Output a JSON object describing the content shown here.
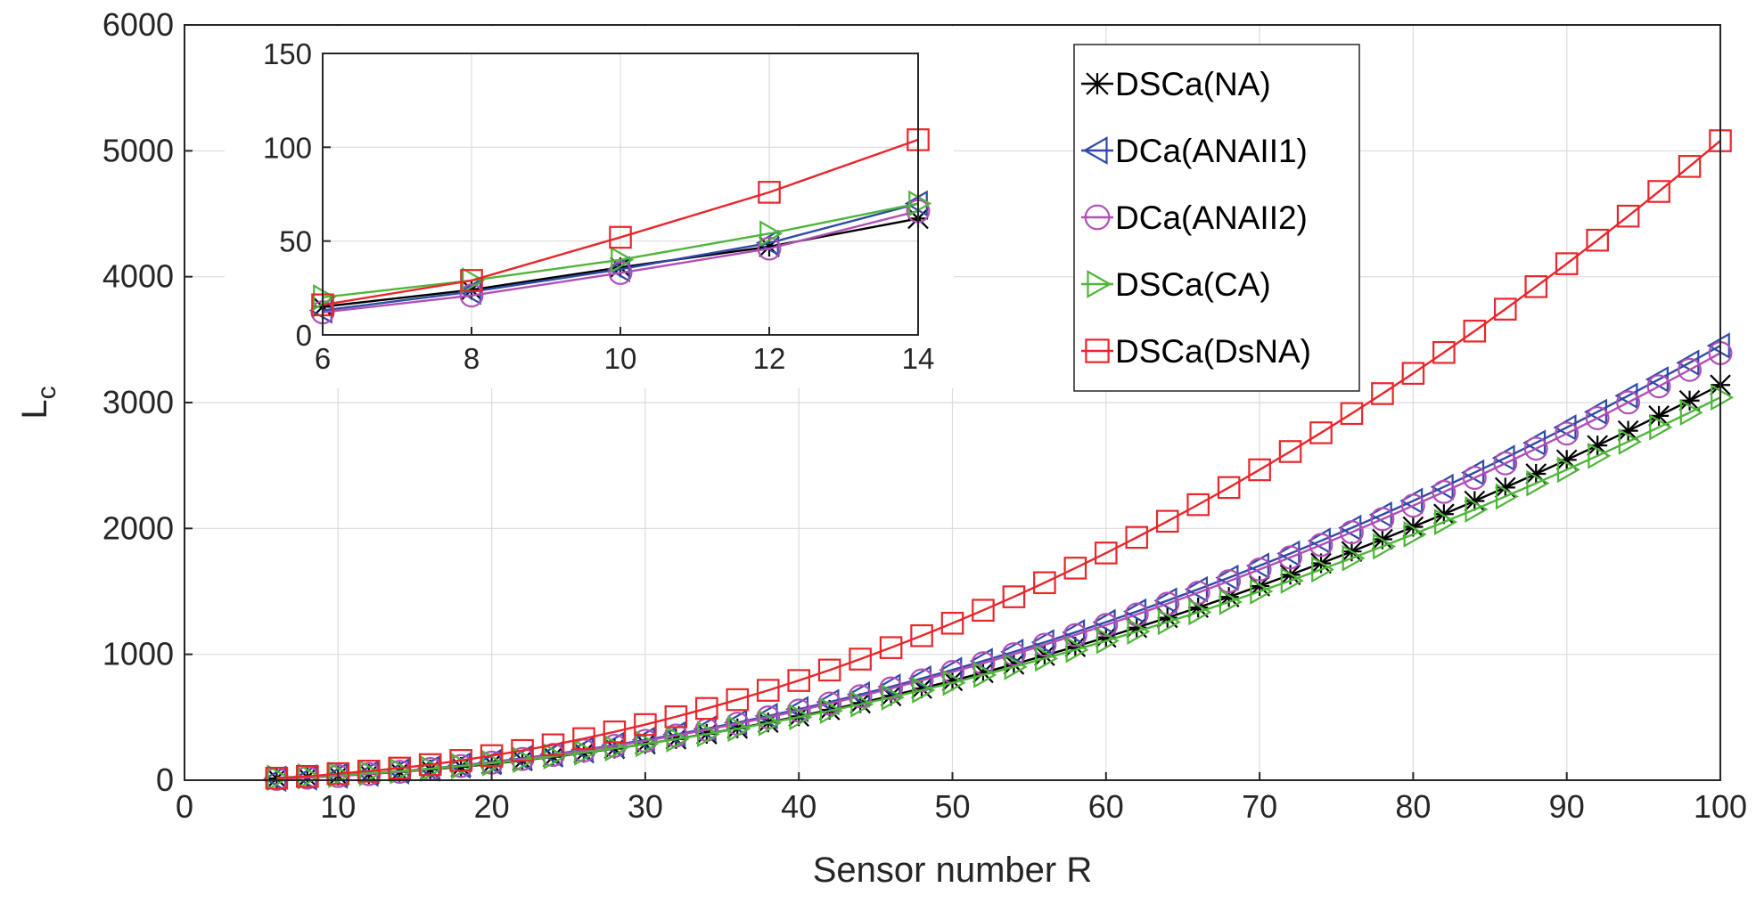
{
  "chart_data": [
    {
      "type": "line",
      "role": "main",
      "xlabel": "Sensor number R",
      "ylabel": "L",
      "ylabel_subscript": "c",
      "xlim": [
        0,
        100
      ],
      "ylim": [
        0,
        6000
      ],
      "xticks": [
        0,
        10,
        20,
        30,
        40,
        50,
        60,
        70,
        80,
        90,
        100
      ],
      "yticks": [
        0,
        1000,
        2000,
        3000,
        4000,
        5000,
        6000
      ],
      "grid": true,
      "legend": "top-right",
      "x": [
        6,
        8,
        10,
        12,
        14,
        16,
        18,
        20,
        22,
        24,
        26,
        28,
        30,
        32,
        34,
        36,
        38,
        40,
        42,
        44,
        46,
        48,
        50,
        52,
        54,
        56,
        58,
        60,
        62,
        64,
        66,
        68,
        70,
        72,
        74,
        76,
        78,
        80,
        82,
        84,
        86,
        88,
        90,
        92,
        94,
        96,
        98,
        100
      ],
      "series": [
        {
          "name": "DSCa(NA)",
          "color": "#000000",
          "marker": "star",
          "values": [
            14,
            23,
            35,
            49,
            66,
            85,
            106,
            130,
            157,
            186,
            217,
            251,
            288,
            327,
            368,
            412,
            459,
            508,
            559,
            613,
            670,
            729,
            790,
            854,
            921,
            990,
            1061,
            1135,
            1212,
            1291,
            1372,
            1456,
            1543,
            1632,
            1723,
            1817,
            1914,
            2013,
            2114,
            2218,
            2325,
            2434,
            2545,
            2659,
            2776,
            2895,
            3016,
            3140
          ]
        },
        {
          "name": "DCa(ANAII1)",
          "color": "#2f4ba6",
          "marker": "triangle-left",
          "values": [
            12,
            22,
            36,
            52,
            71,
            92,
            117,
            144,
            174,
            206,
            241,
            279,
            320,
            363,
            409,
            458,
            510,
            564,
            621,
            681,
            743,
            808,
            876,
            947,
            1020,
            1096,
            1175,
            1256,
            1340,
            1427,
            1517,
            1609,
            1704,
            1801,
            1902,
            2005,
            2110,
            2219,
            2330,
            2444,
            2560,
            2680,
            2802,
            2926,
            3054,
            3184,
            3316,
            3452
          ]
        },
        {
          "name": "DCa(ANAII2)",
          "color": "#b04fb5",
          "marker": "circle",
          "values": [
            11,
            20,
            33,
            49,
            67,
            89,
            113,
            140,
            169,
            201,
            236,
            273,
            313,
            355,
            401,
            449,
            499,
            553,
            609,
            667,
            729,
            793,
            860,
            929,
            1001,
            1076,
            1153,
            1233,
            1316,
            1402,
            1490,
            1581,
            1674,
            1770,
            1869,
            1970,
            2074,
            2181,
            2290,
            2402,
            2517,
            2634,
            2754,
            2876,
            3001,
            3129,
            3260,
            3393
          ]
        },
        {
          "name": "DSCa(CA)",
          "color": "#4fb53a",
          "marker": "triangle-right",
          "values": [
            20,
            30,
            42,
            56,
            72,
            91,
            112,
            135,
            161,
            189,
            220,
            253,
            288,
            326,
            366,
            409,
            454,
            501,
            551,
            603,
            658,
            715,
            774,
            836,
            900,
            967,
            1036,
            1107,
            1181,
            1257,
            1335,
            1416,
            1500,
            1585,
            1674,
            1764,
            1857,
            1953,
            2051,
            2151,
            2254,
            2359,
            2467,
            2577,
            2689,
            2804,
            2921,
            3041
          ]
        },
        {
          "name": "DSCa(DsNA)",
          "color": "#e8262b",
          "marker": "square",
          "values": [
            16,
            30,
            52,
            72,
            96,
            124,
            157,
            195,
            236,
            281,
            330,
            384,
            442,
            504,
            570,
            640,
            714,
            792,
            875,
            962,
            1053,
            1148,
            1247,
            1350,
            1457,
            1569,
            1685,
            1805,
            1929,
            2057,
            2189,
            2325,
            2466,
            2611,
            2760,
            2913,
            3071,
            3232,
            3398,
            3568,
            3742,
            3921,
            4103,
            4290,
            4481,
            4677,
            4876,
            5080
          ]
        }
      ]
    },
    {
      "type": "line",
      "role": "inset",
      "xlim": [
        6,
        14
      ],
      "ylim": [
        0,
        150
      ],
      "xticks": [
        6,
        8,
        10,
        12,
        14
      ],
      "yticks": [
        0,
        50,
        100,
        150
      ],
      "grid": true,
      "x": [
        6,
        8,
        10,
        12,
        14
      ],
      "series": [
        {
          "name": "DSCa(NA)",
          "values": [
            15,
            24,
            36,
            47,
            62
          ]
        },
        {
          "name": "DCa(ANAII1)",
          "values": [
            13,
            23,
            35,
            49,
            70
          ]
        },
        {
          "name": "DCa(ANAII2)",
          "values": [
            12,
            21,
            33,
            46,
            66
          ]
        },
        {
          "name": "DSCa(CA)",
          "values": [
            20,
            29,
            40,
            54,
            70
          ]
        },
        {
          "name": "DSCa(DsNA)",
          "values": [
            16,
            29,
            52,
            76,
            104
          ]
        }
      ]
    }
  ]
}
